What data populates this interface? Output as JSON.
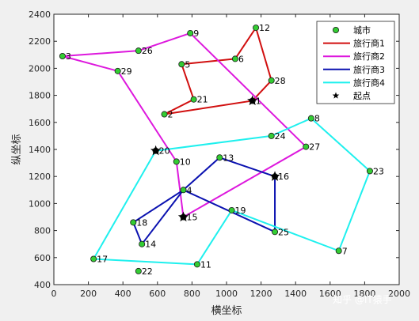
{
  "chart_data": {
    "type": "scatter",
    "xlabel": "横坐标",
    "ylabel": "纵坐标",
    "xlim": [
      0,
      2000
    ],
    "ylim": [
      400,
      2400
    ],
    "xticks": [
      0,
      200,
      400,
      600,
      800,
      1000,
      1200,
      1400,
      1600,
      1800,
      2000
    ],
    "yticks": [
      400,
      600,
      800,
      1000,
      1200,
      1400,
      1600,
      1800,
      2000,
      2200,
      2400
    ],
    "grid": false,
    "legend_position": "top-right",
    "cities": [
      {
        "id": "1",
        "x": 1150,
        "y": 1760
      },
      {
        "id": "2",
        "x": 640,
        "y": 1660
      },
      {
        "id": "3",
        "x": 50,
        "y": 2090
      },
      {
        "id": "4",
        "x": 750,
        "y": 1100
      },
      {
        "id": "5",
        "x": 740,
        "y": 2030
      },
      {
        "id": "6",
        "x": 1050,
        "y": 2070
      },
      {
        "id": "7",
        "x": 1650,
        "y": 650
      },
      {
        "id": "8",
        "x": 1490,
        "y": 1630
      },
      {
        "id": "9",
        "x": 790,
        "y": 2260
      },
      {
        "id": "10",
        "x": 710,
        "y": 1310
      },
      {
        "id": "11",
        "x": 830,
        "y": 550
      },
      {
        "id": "12",
        "x": 1170,
        "y": 2300
      },
      {
        "id": "13",
        "x": 960,
        "y": 1340
      },
      {
        "id": "14",
        "x": 510,
        "y": 700
      },
      {
        "id": "15",
        "x": 750,
        "y": 900
      },
      {
        "id": "16",
        "x": 1280,
        "y": 1200
      },
      {
        "id": "17",
        "x": 230,
        "y": 590
      },
      {
        "id": "18",
        "x": 460,
        "y": 860
      },
      {
        "id": "19",
        "x": 1030,
        "y": 950
      },
      {
        "id": "20",
        "x": 590,
        "y": 1390
      },
      {
        "id": "21",
        "x": 810,
        "y": 1770
      },
      {
        "id": "22",
        "x": 490,
        "y": 500
      },
      {
        "id": "23",
        "x": 1830,
        "y": 1240
      },
      {
        "id": "24",
        "x": 1260,
        "y": 1500
      },
      {
        "id": "25",
        "x": 1280,
        "y": 790
      },
      {
        "id": "26",
        "x": 490,
        "y": 2130
      },
      {
        "id": "27",
        "x": 1460,
        "y": 1420
      },
      {
        "id": "28",
        "x": 1260,
        "y": 1910
      },
      {
        "id": "29",
        "x": 370,
        "y": 1980
      }
    ],
    "series": [
      {
        "name": "城市",
        "kind": "marker",
        "color": "#33cc33"
      },
      {
        "name": "旅行商1",
        "color": "#d10f0f",
        "route": [
          "1",
          "28",
          "12",
          "6",
          "5",
          "21",
          "2",
          "1"
        ]
      },
      {
        "name": "旅行商2",
        "color": "#dd18dd",
        "route": [
          "15",
          "27",
          "9",
          "26",
          "3",
          "29",
          "10",
          "15"
        ]
      },
      {
        "name": "旅行商3",
        "color": "#0a11b0",
        "route": [
          "16",
          "13",
          "4",
          "18",
          "14",
          "4",
          "25",
          "16"
        ]
      },
      {
        "name": "旅行商4",
        "color": "#1ff0ee",
        "route": [
          "20",
          "24",
          "8",
          "23",
          "7",
          "19",
          "11",
          "17",
          "20"
        ]
      },
      {
        "name": "起点",
        "kind": "marker",
        "starts": [
          "1",
          "15",
          "16",
          "20"
        ]
      }
    ]
  },
  "watermark": "知乎 @IT猿手"
}
